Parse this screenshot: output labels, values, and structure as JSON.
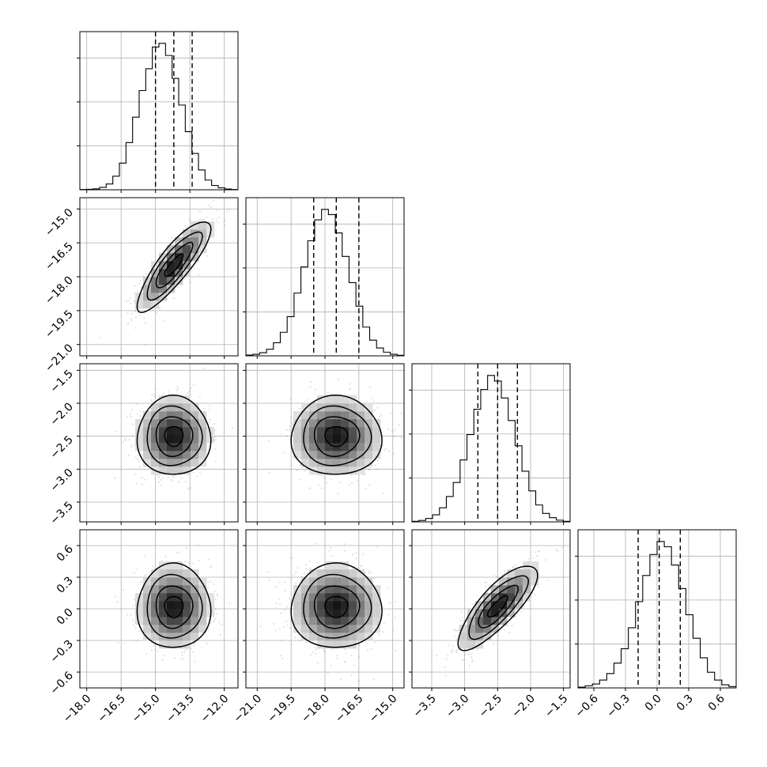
{
  "chart_data": {
    "type": "corner",
    "grid": true,
    "quantiles": [
      0.16,
      0.5,
      0.84
    ],
    "params": [
      {
        "mean": -14.2,
        "std": 0.8,
        "range": [
          -18.3,
          -11.4
        ],
        "ticks": [
          -18.0,
          -16.5,
          -15.0,
          -13.5,
          -12.0
        ],
        "tick_labels": [
          "−18.0",
          "−16.5",
          "−15.0",
          "−13.5",
          "−12.0"
        ],
        "quantile_values": [
          -15.0,
          -14.2,
          -13.4
        ],
        "hist": [
          1,
          2,
          4,
          10,
          24,
          56,
          110,
          195,
          300,
          410,
          500,
          590,
          605,
          555,
          460,
          350,
          240,
          150,
          82,
          40,
          18,
          8,
          3,
          1
        ]
      },
      {
        "mean": -17.5,
        "std": 1.0,
        "range": [
          -21.5,
          -14.5
        ],
        "ticks": [
          -21.0,
          -19.5,
          -18.0,
          -16.5,
          -15.0
        ],
        "tick_labels": [
          "−21.0",
          "−19.5",
          "−18.0",
          "−16.5",
          "−15.0"
        ],
        "quantile_values": [
          -18.5,
          -17.5,
          -16.5
        ],
        "hist": [
          3,
          6,
          12,
          25,
          50,
          90,
          150,
          240,
          340,
          440,
          520,
          560,
          540,
          470,
          380,
          280,
          190,
          110,
          60,
          30,
          14,
          6,
          2
        ]
      },
      {
        "mean": -2.5,
        "std": 0.3,
        "range": [
          -3.8,
          -1.4
        ],
        "ticks": [
          -3.5,
          -3.0,
          -2.5,
          -2.0,
          -1.5
        ],
        "tick_labels": [
          "−3.5",
          "−3.0",
          "−2.5",
          "−2.0",
          "−1.5"
        ],
        "y_ticks": [
          -3.5,
          -3.0,
          -2.5,
          -2.0,
          -1.5
        ],
        "y_tick_labels": [
          "−3.5",
          "−3.0",
          "−2.5",
          "−2.0",
          "−1.5"
        ],
        "quantile_values": [
          -2.8,
          -2.5,
          -2.2
        ],
        "hist": [
          2,
          5,
          12,
          25,
          50,
          90,
          140,
          220,
          310,
          400,
          470,
          520,
          500,
          440,
          360,
          270,
          180,
          110,
          60,
          30,
          15,
          6,
          2
        ]
      },
      {
        "mean": 0.02,
        "std": 0.2,
        "range": [
          -0.75,
          0.75
        ],
        "ticks": [
          -0.6,
          -0.3,
          0.0,
          0.3,
          0.6
        ],
        "tick_labels": [
          "−0.6",
          "−0.3",
          "0.0",
          "0.3",
          "0.6"
        ],
        "y_ticks": [
          -0.6,
          -0.3,
          0.0,
          0.3,
          0.6
        ],
        "y_tick_labels": [
          "−0.6",
          "−0.3",
          "0.0",
          "0.3",
          "0.6"
        ],
        "quantile_values": [
          -0.18,
          0.02,
          0.22
        ],
        "hist": [
          3,
          8,
          15,
          30,
          55,
          95,
          150,
          230,
          330,
          430,
          510,
          560,
          540,
          470,
          380,
          280,
          190,
          115,
          60,
          30,
          12,
          5
        ]
      }
    ],
    "correlations": {
      "1-0": 0.85,
      "2-0": 0.0,
      "2-1": 0.0,
      "3-0": 0.0,
      "3-1": 0.0,
      "3-2": 0.8
    }
  }
}
